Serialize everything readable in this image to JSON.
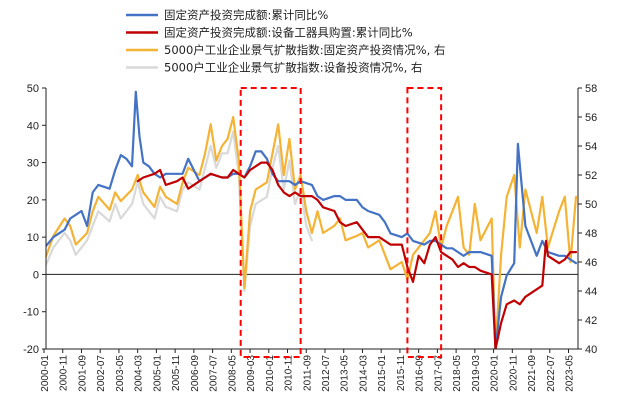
{
  "chart_data": {
    "type": "line",
    "title": "",
    "xlabel": "",
    "ylabel": "",
    "x_range": [
      "2000-01",
      "2023-09"
    ],
    "ylim_left": [
      -20,
      50
    ],
    "ylim_right": [
      40,
      58
    ],
    "yticks_left": [
      "50",
      "40",
      "30",
      "20",
      "10",
      "0",
      "-10",
      "-20"
    ],
    "yticks_right": [
      "58",
      "56",
      "54",
      "52",
      "50",
      "48",
      "46",
      "44",
      "42",
      "40"
    ],
    "xticks": [
      "2000-01",
      "2000-11",
      "2001-09",
      "2002-07",
      "2003-05",
      "2004-03",
      "2005-01",
      "2005-11",
      "2006-09",
      "2007-07",
      "2008-05",
      "2009-03",
      "2010-01",
      "2010-11",
      "2011-09",
      "2012-07",
      "2013-05",
      "2014-03",
      "2015-01",
      "2015-11",
      "2016-09",
      "2017-07",
      "2018-05",
      "2019-03",
      "2020-01",
      "2020-11",
      "2021-09",
      "2022-07",
      "2023-05"
    ],
    "legend_position": "top",
    "grid": false,
    "series": [
      {
        "name": "固定资产投资完成额:累计同比%",
        "color": "#4472C4",
        "axis": "left",
        "points": [
          [
            "2000-01",
            7
          ],
          [
            "2000-06",
            10
          ],
          [
            "2000-12",
            12
          ],
          [
            "2001-03",
            15
          ],
          [
            "2001-06",
            16
          ],
          [
            "2001-09",
            17
          ],
          [
            "2001-12",
            13
          ],
          [
            "2002-03",
            22
          ],
          [
            "2002-06",
            24
          ],
          [
            "2002-12",
            23
          ],
          [
            "2003-03",
            28
          ],
          [
            "2003-06",
            32
          ],
          [
            "2003-09",
            31
          ],
          [
            "2003-12",
            29
          ],
          [
            "2004-02",
            49
          ],
          [
            "2004-04",
            37
          ],
          [
            "2004-06",
            30
          ],
          [
            "2004-09",
            29
          ],
          [
            "2004-12",
            27
          ],
          [
            "2005-03",
            26
          ],
          [
            "2005-06",
            27
          ],
          [
            "2005-12",
            27
          ],
          [
            "2006-03",
            27
          ],
          [
            "2006-06",
            31
          ],
          [
            "2006-12",
            25
          ],
          [
            "2007-03",
            26
          ],
          [
            "2007-06",
            27
          ],
          [
            "2007-12",
            26
          ],
          [
            "2008-03",
            26
          ],
          [
            "2008-06",
            27
          ],
          [
            "2008-09",
            27
          ],
          [
            "2008-12",
            26
          ],
          [
            "2009-03",
            29
          ],
          [
            "2009-06",
            33
          ],
          [
            "2009-09",
            33
          ],
          [
            "2009-12",
            31
          ],
          [
            "2010-03",
            27
          ],
          [
            "2010-06",
            25
          ],
          [
            "2010-12",
            25
          ],
          [
            "2011-03",
            24
          ],
          [
            "2011-06",
            25
          ],
          [
            "2011-12",
            24
          ],
          [
            "2012-03",
            21
          ],
          [
            "2012-06",
            20
          ],
          [
            "2012-12",
            21
          ],
          [
            "2013-03",
            21
          ],
          [
            "2013-06",
            20
          ],
          [
            "2013-12",
            20
          ],
          [
            "2014-03",
            18
          ],
          [
            "2014-06",
            17
          ],
          [
            "2014-12",
            16
          ],
          [
            "2015-03",
            14
          ],
          [
            "2015-06",
            11
          ],
          [
            "2015-12",
            10
          ],
          [
            "2016-03",
            11
          ],
          [
            "2016-06",
            9
          ],
          [
            "2016-12",
            8
          ],
          [
            "2017-03",
            9
          ],
          [
            "2017-06",
            9
          ],
          [
            "2017-12",
            7
          ],
          [
            "2018-03",
            7
          ],
          [
            "2018-06",
            6
          ],
          [
            "2018-09",
            5
          ],
          [
            "2018-12",
            6
          ],
          [
            "2019-03",
            6
          ],
          [
            "2019-06",
            6
          ],
          [
            "2019-12",
            5
          ],
          [
            "2020-02",
            -24
          ],
          [
            "2020-05",
            -6
          ],
          [
            "2020-08",
            -0.3
          ],
          [
            "2020-12",
            3
          ],
          [
            "2021-02",
            35
          ],
          [
            "2021-06",
            13
          ],
          [
            "2021-12",
            5
          ],
          [
            "2022-03",
            9
          ],
          [
            "2022-06",
            6
          ],
          [
            "2022-12",
            5
          ],
          [
            "2023-03",
            5
          ],
          [
            "2023-06",
            4
          ],
          [
            "2023-09",
            3
          ]
        ]
      },
      {
        "name": "固定资产投资完成额:设备工器具购置:累计同比%",
        "color": "#C00000",
        "axis": "left",
        "points": [
          [
            "2004-03",
            25
          ],
          [
            "2004-06",
            26
          ],
          [
            "2004-12",
            27
          ],
          [
            "2005-03",
            28
          ],
          [
            "2005-06",
            24
          ],
          [
            "2005-12",
            25
          ],
          [
            "2006-03",
            26
          ],
          [
            "2006-06",
            23
          ],
          [
            "2006-12",
            25
          ],
          [
            "2007-03",
            26
          ],
          [
            "2007-06",
            27
          ],
          [
            "2007-12",
            26
          ],
          [
            "2008-03",
            26
          ],
          [
            "2008-06",
            28
          ],
          [
            "2008-09",
            27
          ],
          [
            "2008-12",
            26
          ],
          [
            "2009-03",
            28
          ],
          [
            "2009-06",
            29
          ],
          [
            "2009-09",
            30
          ],
          [
            "2009-12",
            30
          ],
          [
            "2010-03",
            28
          ],
          [
            "2010-06",
            24
          ],
          [
            "2010-09",
            22
          ],
          [
            "2010-12",
            21
          ],
          [
            "2011-03",
            22
          ],
          [
            "2011-06",
            21
          ],
          [
            "2011-12",
            21
          ],
          [
            "2012-03",
            20
          ],
          [
            "2012-06",
            18
          ],
          [
            "2012-12",
            17
          ],
          [
            "2013-03",
            14
          ],
          [
            "2013-06",
            13
          ],
          [
            "2013-12",
            14
          ],
          [
            "2014-03",
            12
          ],
          [
            "2014-06",
            10
          ],
          [
            "2014-12",
            10
          ],
          [
            "2015-03",
            9
          ],
          [
            "2015-06",
            8
          ],
          [
            "2015-12",
            8
          ],
          [
            "2016-03",
            2
          ],
          [
            "2016-06",
            -2
          ],
          [
            "2016-09",
            5
          ],
          [
            "2016-12",
            3
          ],
          [
            "2017-03",
            8
          ],
          [
            "2017-06",
            10
          ],
          [
            "2017-09",
            6
          ],
          [
            "2017-12",
            5
          ],
          [
            "2018-03",
            4
          ],
          [
            "2018-06",
            2
          ],
          [
            "2018-09",
            3
          ],
          [
            "2018-12",
            2
          ],
          [
            "2019-03",
            2
          ],
          [
            "2019-06",
            1
          ],
          [
            "2019-12",
            0
          ],
          [
            "2020-02",
            -25
          ],
          [
            "2020-05",
            -13
          ],
          [
            "2020-08",
            -8
          ],
          [
            "2020-12",
            -7
          ],
          [
            "2021-03",
            -8
          ],
          [
            "2021-06",
            -6
          ],
          [
            "2021-12",
            -4
          ],
          [
            "2022-03",
            -3
          ],
          [
            "2022-05",
            9
          ],
          [
            "2022-06",
            5
          ],
          [
            "2022-12",
            3
          ],
          [
            "2023-03",
            4
          ],
          [
            "2023-06",
            6
          ],
          [
            "2023-09",
            6
          ]
        ]
      },
      {
        "name": "5000户工业企业景气扩散指数:固定资产投资情况%, 右",
        "color": "#F5B335",
        "axis": "right",
        "points": [
          [
            "2000-01",
            46.0
          ],
          [
            "2000-06",
            47.8
          ],
          [
            "2000-12",
            49.0
          ],
          [
            "2001-03",
            48.5
          ],
          [
            "2001-06",
            47.2
          ],
          [
            "2001-12",
            48.0
          ],
          [
            "2002-03",
            49.5
          ],
          [
            "2002-06",
            50.5
          ],
          [
            "2002-12",
            49.6
          ],
          [
            "2003-03",
            50.8
          ],
          [
            "2003-06",
            50.2
          ],
          [
            "2003-12",
            51.0
          ],
          [
            "2004-03",
            52.0
          ],
          [
            "2004-06",
            50.8
          ],
          [
            "2004-12",
            49.8
          ],
          [
            "2005-03",
            51.2
          ],
          [
            "2005-06",
            50.5
          ],
          [
            "2005-12",
            50.0
          ],
          [
            "2006-03",
            51.5
          ],
          [
            "2006-06",
            52.5
          ],
          [
            "2006-12",
            52.0
          ],
          [
            "2007-03",
            53.5
          ],
          [
            "2007-06",
            55.5
          ],
          [
            "2007-09",
            53.0
          ],
          [
            "2007-12",
            54.0
          ],
          [
            "2008-03",
            54.5
          ],
          [
            "2008-06",
            56.0
          ],
          [
            "2008-09",
            53.0
          ],
          [
            "2008-12",
            44.2
          ],
          [
            "2009-03",
            49.5
          ],
          [
            "2009-06",
            51.0
          ],
          [
            "2009-12",
            51.5
          ],
          [
            "2010-03",
            53.5
          ],
          [
            "2010-06",
            55.5
          ],
          [
            "2010-09",
            52.0
          ],
          [
            "2010-12",
            54.5
          ],
          [
            "2011-03",
            51.0
          ],
          [
            "2011-06",
            52.0
          ],
          [
            "2011-09",
            49.5
          ],
          [
            "2011-12",
            48.0
          ],
          [
            "2012-03",
            49.5
          ],
          [
            "2012-06",
            48.0
          ],
          [
            "2012-12",
            48.5
          ],
          [
            "2013-03",
            49.0
          ],
          [
            "2013-06",
            47.5
          ],
          [
            "2013-12",
            47.8
          ],
          [
            "2014-03",
            48.0
          ],
          [
            "2014-06",
            47.0
          ],
          [
            "2014-12",
            47.5
          ],
          [
            "2015-03",
            46.5
          ],
          [
            "2015-06",
            45.5
          ],
          [
            "2015-12",
            46.0
          ],
          [
            "2016-03",
            44.8
          ],
          [
            "2016-06",
            46.5
          ],
          [
            "2016-12",
            47.5
          ],
          [
            "2017-03",
            48.0
          ],
          [
            "2017-06",
            49.5
          ],
          [
            "2017-09",
            47.0
          ],
          [
            "2017-12",
            48.5
          ],
          [
            "2018-03",
            49.5
          ],
          [
            "2018-06",
            50.5
          ],
          [
            "2018-09",
            47.0
          ],
          [
            "2018-12",
            46.5
          ],
          [
            "2019-03",
            50.0
          ],
          [
            "2019-06",
            47.5
          ],
          [
            "2019-12",
            49.0
          ],
          [
            "2020-02",
            40.0
          ],
          [
            "2020-05",
            46.5
          ],
          [
            "2020-08",
            50.5
          ],
          [
            "2020-12",
            52.0
          ],
          [
            "2021-03",
            47.0
          ],
          [
            "2021-06",
            51.0
          ],
          [
            "2021-12",
            48.0
          ],
          [
            "2022-03",
            50.5
          ],
          [
            "2022-06",
            47.0
          ],
          [
            "2022-12",
            49.5
          ],
          [
            "2023-03",
            50.5
          ],
          [
            "2023-06",
            46.0
          ],
          [
            "2023-09",
            50.5
          ]
        ]
      },
      {
        "name": "5000户工业企业景气扩散指数:设备投资情况%, 右",
        "color": "#D9D9D9",
        "axis": "right",
        "points": [
          [
            "2000-01",
            45.5
          ],
          [
            "2000-06",
            47.0
          ],
          [
            "2000-12",
            48.0
          ],
          [
            "2001-03",
            47.5
          ],
          [
            "2001-06",
            46.5
          ],
          [
            "2001-12",
            47.5
          ],
          [
            "2002-03",
            48.5
          ],
          [
            "2002-06",
            49.5
          ],
          [
            "2002-12",
            48.8
          ],
          [
            "2003-03",
            50.0
          ],
          [
            "2003-06",
            49.0
          ],
          [
            "2003-12",
            50.0
          ],
          [
            "2004-03",
            51.5
          ],
          [
            "2004-06",
            50.0
          ],
          [
            "2004-12",
            49.0
          ],
          [
            "2005-03",
            50.5
          ],
          [
            "2005-06",
            49.8
          ],
          [
            "2005-12",
            49.5
          ],
          [
            "2006-03",
            51.0
          ],
          [
            "2006-06",
            51.5
          ],
          [
            "2006-12",
            51.0
          ],
          [
            "2007-03",
            52.5
          ],
          [
            "2007-06",
            54.0
          ],
          [
            "2007-09",
            52.5
          ],
          [
            "2007-12",
            53.5
          ],
          [
            "2008-03",
            53.5
          ],
          [
            "2008-06",
            55.0
          ],
          [
            "2008-09",
            52.0
          ],
          [
            "2008-12",
            44.0
          ],
          [
            "2009-03",
            48.5
          ],
          [
            "2009-06",
            50.0
          ],
          [
            "2009-12",
            50.5
          ],
          [
            "2010-03",
            52.5
          ],
          [
            "2010-06",
            54.0
          ],
          [
            "2010-09",
            51.0
          ],
          [
            "2010-12",
            53.0
          ],
          [
            "2011-03",
            50.0
          ],
          [
            "2011-06",
            51.0
          ],
          [
            "2011-09",
            48.5
          ],
          [
            "2011-12",
            47.5
          ]
        ]
      }
    ],
    "annotations": [
      {
        "type": "dashed-box",
        "color": "#FF0000",
        "from": "2008-10",
        "to": "2011-06"
      },
      {
        "type": "dashed-box",
        "color": "#FF0000",
        "from": "2016-03",
        "to": "2017-09"
      }
    ]
  }
}
